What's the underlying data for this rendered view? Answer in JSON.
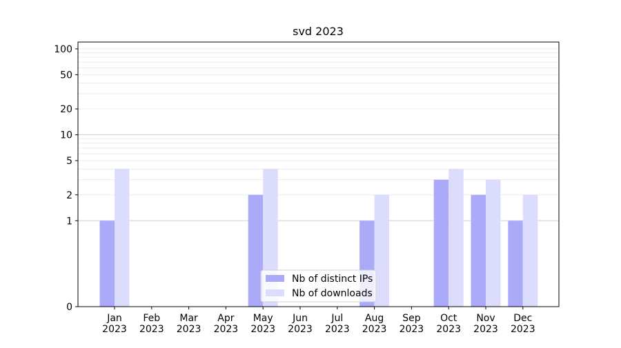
{
  "chart_data": {
    "type": "bar",
    "title": "svd 2023",
    "xlabel": "",
    "ylabel": "",
    "categories": [
      [
        "Jan",
        "2023"
      ],
      [
        "Feb",
        "2023"
      ],
      [
        "Mar",
        "2023"
      ],
      [
        "Apr",
        "2023"
      ],
      [
        "May",
        "2023"
      ],
      [
        "Jun",
        "2023"
      ],
      [
        "Jul",
        "2023"
      ],
      [
        "Aug",
        "2023"
      ],
      [
        "Sep",
        "2023"
      ],
      [
        "Oct",
        "2023"
      ],
      [
        "Nov",
        "2023"
      ],
      [
        "Dec",
        "2023"
      ]
    ],
    "series": [
      {
        "name": "Nb of distinct IPs",
        "color": "#aaaaf8",
        "values": [
          1,
          0,
          0,
          0,
          2,
          0,
          0,
          1,
          0,
          3,
          2,
          1
        ]
      },
      {
        "name": "Nb of downloads",
        "color": "#dcdcfc",
        "values": [
          4,
          0,
          0,
          0,
          4,
          0,
          0,
          2,
          0,
          4,
          3,
          2
        ]
      }
    ],
    "y_scale": "symlog",
    "ylim": [
      0,
      120
    ],
    "y_ticks": [
      0,
      1,
      2,
      5,
      10,
      20,
      50,
      100
    ],
    "grid": {
      "major_y": [
        1,
        10
      ],
      "minor_y": true
    },
    "legend": "lower-center"
  }
}
